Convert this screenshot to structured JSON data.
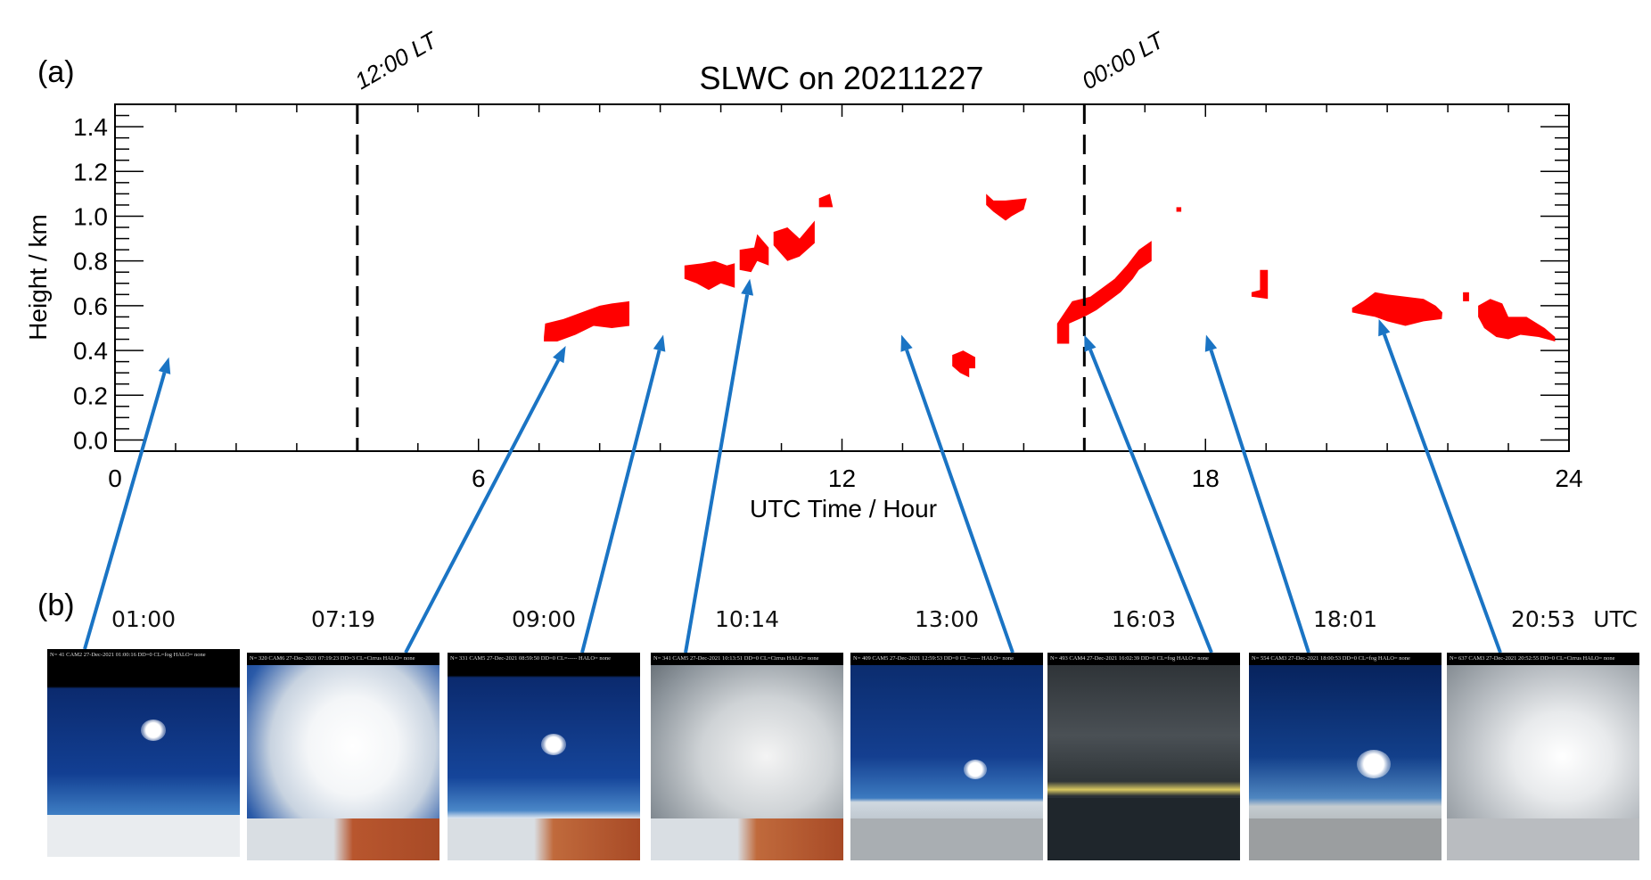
{
  "panel_labels": {
    "a": "(a)",
    "b": "(b)"
  },
  "chart_data": {
    "type": "heatmap",
    "title": "SLWC on 20211227",
    "xlabel": "UTC Time / Hour",
    "ylabel": "Height / km",
    "xlim": [
      0,
      24
    ],
    "ylim": [
      -0.05,
      1.5
    ],
    "xticks": [
      0,
      6,
      12,
      18,
      24
    ],
    "xtick_labels": [
      "0",
      "6",
      "12",
      "18",
      "24"
    ],
    "yticks": [
      0.0,
      0.2,
      0.4,
      0.6,
      0.8,
      1.0,
      1.2,
      1.4
    ],
    "ytick_labels": [
      "0.0",
      "0.2",
      "0.4",
      "0.6",
      "0.8",
      "1.0",
      "1.2",
      "1.4"
    ],
    "grid": false,
    "fill_color": "#ff0000",
    "reference_lines": [
      {
        "x": 4,
        "label": "12:00 LT",
        "style": "dashed"
      },
      {
        "x": 16,
        "label": "00:00 LT",
        "style": "dashed"
      }
    ],
    "slwc_regions": [
      {
        "points": [
          [
            7.08,
            0.46
          ],
          [
            7.1,
            0.52
          ],
          [
            7.4,
            0.54
          ],
          [
            7.6,
            0.56
          ],
          [
            8.0,
            0.6
          ],
          [
            8.2,
            0.61
          ],
          [
            8.49,
            0.62
          ],
          [
            8.49,
            0.51
          ],
          [
            8.2,
            0.5
          ],
          [
            7.9,
            0.51
          ],
          [
            7.6,
            0.47
          ],
          [
            7.3,
            0.44
          ],
          [
            7.08,
            0.44
          ]
        ]
      },
      {
        "points": [
          [
            9.4,
            0.78
          ],
          [
            9.7,
            0.79
          ],
          [
            9.9,
            0.8
          ],
          [
            10.1,
            0.78
          ],
          [
            10.23,
            0.79
          ],
          [
            10.23,
            0.68
          ],
          [
            10.0,
            0.7
          ],
          [
            9.8,
            0.67
          ],
          [
            9.6,
            0.7
          ],
          [
            9.4,
            0.72
          ]
        ]
      },
      {
        "points": [
          [
            10.31,
            0.85
          ],
          [
            10.55,
            0.86
          ],
          [
            10.6,
            0.92
          ],
          [
            10.79,
            0.86
          ],
          [
            10.79,
            0.78
          ],
          [
            10.6,
            0.8
          ],
          [
            10.5,
            0.75
          ],
          [
            10.31,
            0.76
          ]
        ]
      },
      {
        "points": [
          [
            10.87,
            0.93
          ],
          [
            11.1,
            0.95
          ],
          [
            11.3,
            0.9
          ],
          [
            11.55,
            0.98
          ],
          [
            11.55,
            0.88
          ],
          [
            11.3,
            0.82
          ],
          [
            11.1,
            0.8
          ],
          [
            10.87,
            0.87
          ]
        ]
      },
      {
        "points": [
          [
            11.62,
            1.04
          ],
          [
            11.62,
            1.08
          ],
          [
            11.8,
            1.1
          ],
          [
            11.85,
            1.04
          ]
        ]
      },
      {
        "points": [
          [
            14.38,
            1.1
          ],
          [
            14.5,
            1.07
          ],
          [
            14.7,
            1.07
          ],
          [
            15.05,
            1.08
          ],
          [
            15.0,
            1.03
          ],
          [
            14.8,
            1.0
          ],
          [
            14.7,
            0.98
          ],
          [
            14.5,
            1.02
          ],
          [
            14.38,
            1.05
          ]
        ]
      },
      {
        "points": [
          [
            13.82,
            0.38
          ],
          [
            14.0,
            0.4
          ],
          [
            14.2,
            0.37
          ],
          [
            14.2,
            0.32
          ],
          [
            14.1,
            0.32
          ],
          [
            14.1,
            0.28
          ],
          [
            13.95,
            0.3
          ],
          [
            13.82,
            0.33
          ]
        ]
      },
      {
        "points": [
          [
            15.55,
            0.43
          ],
          [
            15.55,
            0.52
          ],
          [
            15.7,
            0.58
          ],
          [
            15.8,
            0.62
          ],
          [
            16.1,
            0.64
          ],
          [
            16.3,
            0.68
          ],
          [
            16.5,
            0.72
          ],
          [
            16.7,
            0.78
          ],
          [
            16.9,
            0.85
          ],
          [
            17.11,
            0.89
          ],
          [
            17.11,
            0.8
          ],
          [
            16.9,
            0.76
          ],
          [
            16.8,
            0.72
          ],
          [
            16.6,
            0.66
          ],
          [
            16.4,
            0.62
          ],
          [
            16.2,
            0.58
          ],
          [
            16.0,
            0.55
          ],
          [
            15.75,
            0.52
          ],
          [
            15.75,
            0.43
          ]
        ]
      },
      {
        "points": [
          [
            17.52,
            1.02
          ],
          [
            17.52,
            1.04
          ],
          [
            17.6,
            1.04
          ],
          [
            17.6,
            1.02
          ]
        ]
      },
      {
        "points": [
          [
            18.76,
            0.66
          ],
          [
            18.9,
            0.67
          ],
          [
            18.9,
            0.76
          ],
          [
            19.03,
            0.76
          ],
          [
            19.03,
            0.63
          ],
          [
            18.76,
            0.64
          ]
        ]
      },
      {
        "points": [
          [
            20.42,
            0.59
          ],
          [
            20.6,
            0.62
          ],
          [
            20.8,
            0.66
          ],
          [
            21.0,
            0.65
          ],
          [
            21.3,
            0.64
          ],
          [
            21.6,
            0.63
          ],
          [
            21.8,
            0.6
          ],
          [
            21.91,
            0.57
          ],
          [
            21.9,
            0.54
          ],
          [
            21.6,
            0.53
          ],
          [
            21.3,
            0.51
          ],
          [
            21.0,
            0.53
          ],
          [
            20.8,
            0.55
          ],
          [
            20.6,
            0.56
          ],
          [
            20.42,
            0.57
          ]
        ]
      },
      {
        "points": [
          [
            22.25,
            0.62
          ],
          [
            22.25,
            0.66
          ],
          [
            22.35,
            0.66
          ],
          [
            22.35,
            0.62
          ]
        ]
      },
      {
        "points": [
          [
            22.5,
            0.6
          ],
          [
            22.7,
            0.63
          ],
          [
            22.9,
            0.61
          ],
          [
            23.0,
            0.55
          ],
          [
            23.3,
            0.55
          ],
          [
            23.6,
            0.5
          ],
          [
            23.77,
            0.46
          ],
          [
            23.77,
            0.44
          ],
          [
            23.5,
            0.46
          ],
          [
            23.2,
            0.47
          ],
          [
            23.0,
            0.45
          ],
          [
            22.8,
            0.46
          ],
          [
            22.6,
            0.5
          ],
          [
            22.5,
            0.55
          ]
        ]
      }
    ],
    "annotations": [
      {
        "photo": 0,
        "x": 0.89,
        "y": 0.37
      },
      {
        "photo": 1,
        "x": 7.44,
        "y": 0.42
      },
      {
        "photo": 2,
        "x": 9.05,
        "y": 0.47
      },
      {
        "photo": 3,
        "x": 10.48,
        "y": 0.72
      },
      {
        "photo": 4,
        "x": 12.98,
        "y": 0.47
      },
      {
        "photo": 5,
        "x": 16.0,
        "y": 0.47
      },
      {
        "photo": 6,
        "x": 18.01,
        "y": 0.47
      },
      {
        "photo": 7,
        "x": 20.86,
        "y": 0.54
      }
    ],
    "arrow_color": "#1a74c4"
  },
  "photos": [
    {
      "time": "01:00",
      "caption": "N= 41 CAM2 27-Dec-2021 01:00:16 DD=0 CL=fog    HALO= none"
    },
    {
      "time": "07:19",
      "caption": "N= 320 CAM6 27-Dec-2021 07:19:23 DD=3 CL=Cirrus  HALO= none"
    },
    {
      "time": "09:00",
      "caption": "N= 331 CAM5 27-Dec-2021 08:59:50 DD=0 CL=-----  HALO= none"
    },
    {
      "time": "10:14",
      "caption": "N= 341 CAM5 27-Dec-2021 10:13:51 DD=0 CL=Cirrus  HALO= none"
    },
    {
      "time": "13:00",
      "caption": "N= 409 CAM5 27-Dec-2021 12:59:53 DD=0 CL=-----   HALO= none"
    },
    {
      "time": "16:03",
      "caption": "N= 493 CAM4 27-Dec-2021 16:02:39 DD=0 CL=fog    HALO= none"
    },
    {
      "time": "18:01",
      "caption": "N= 554 CAM3 27-Dec-2021 18:00:53 DD=0 CL=fog    HALO= none"
    },
    {
      "time": "20:53",
      "caption": "N= 637 CAM3 27-Dec-2021 20:52:55 DD=0 CL=Cirrus  HALO= none"
    }
  ],
  "time_unit": "UTC"
}
